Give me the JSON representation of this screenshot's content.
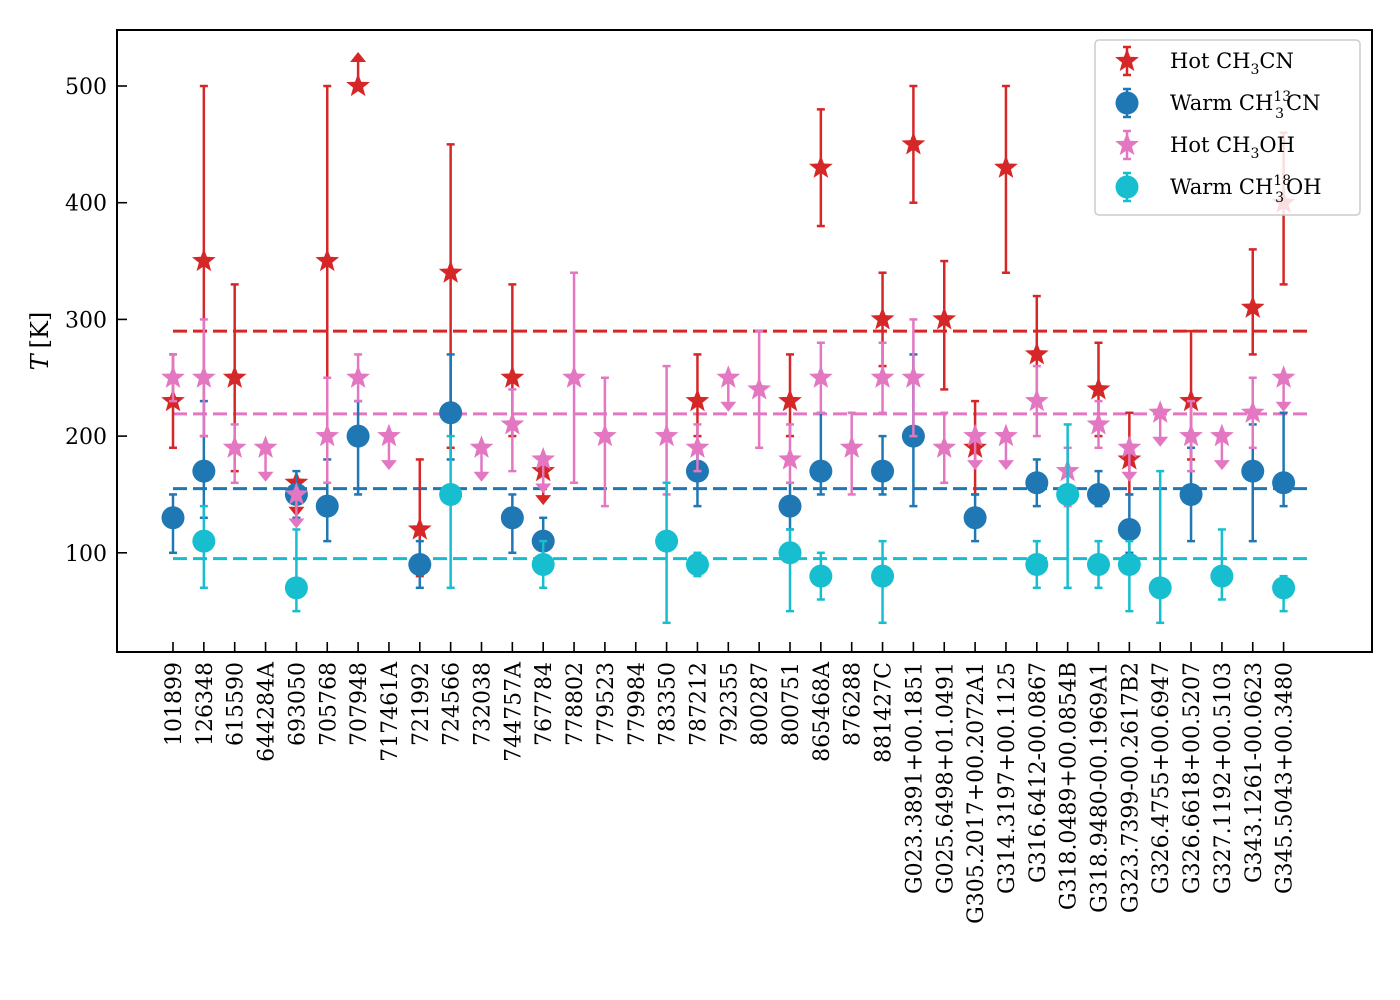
{
  "chart_data": {
    "type": "scatter",
    "ylabel_italic": "T",
    "ylabel_unit": "[K]",
    "ylim": [
      15,
      548
    ],
    "yticks": [
      100,
      200,
      300,
      400,
      500
    ],
    "categories": [
      "101899",
      "126348",
      "615590",
      "644284A",
      "693050",
      "705768",
      "707948",
      "717461A",
      "721992",
      "724566",
      "732038",
      "744757A",
      "767784",
      "778802",
      "779523",
      "779984",
      "783350",
      "787212",
      "792355",
      "800287",
      "800751",
      "865468A",
      "876288",
      "881427C",
      "G023.3891+00.1851",
      "G025.6498+01.0491",
      "G305.2017+00.2072A1",
      "G314.3197+00.1125",
      "G316.6412-00.0867",
      "G318.0489+00.0854B",
      "G318.9480-00.1969A1",
      "G323.7399-00.2617B2",
      "G326.4755+00.6947",
      "G326.6618+00.5207",
      "G327.1192+00.5103",
      "G343.1261-00.0623",
      "G345.5043+00.3480"
    ],
    "series": [
      {
        "key": "hot_ch3cn",
        "legend": {
          "pre": "Hot CH",
          "sub": "3",
          "sup": "",
          "post": "CN"
        },
        "color": "#d62728",
        "marker": "star",
        "mean": 290,
        "points": [
          {
            "i": 0,
            "y": 230,
            "lo": 190,
            "hi": 270
          },
          {
            "i": 1,
            "y": 350,
            "lo": 200,
            "hi": 500
          },
          {
            "i": 2,
            "y": 250,
            "lo": 170,
            "hi": 330
          },
          {
            "i": 4,
            "y": 160,
            "limit": "upper"
          },
          {
            "i": 5,
            "y": 350,
            "lo": 200,
            "hi": 500
          },
          {
            "i": 6,
            "y": 500,
            "limit": "lower"
          },
          {
            "i": 8,
            "y": 120,
            "lo": 80,
            "hi": 180
          },
          {
            "i": 9,
            "y": 340,
            "lo": 190,
            "hi": 450
          },
          {
            "i": 11,
            "y": 250,
            "lo": 200,
            "hi": 330
          },
          {
            "i": 12,
            "y": 170,
            "limit": "upper"
          },
          {
            "i": 17,
            "y": 230,
            "lo": 200,
            "hi": 270
          },
          {
            "i": 20,
            "y": 230,
            "lo": 200,
            "hi": 270
          },
          {
            "i": 21,
            "y": 430,
            "lo": 380,
            "hi": 480
          },
          {
            "i": 23,
            "y": 300,
            "lo": 260,
            "hi": 340
          },
          {
            "i": 24,
            "y": 450,
            "lo": 400,
            "hi": 500
          },
          {
            "i": 25,
            "y": 300,
            "lo": 240,
            "hi": 350
          },
          {
            "i": 26,
            "y": 190,
            "lo": 150,
            "hi": 230
          },
          {
            "i": 27,
            "y": 430,
            "lo": 340,
            "hi": 500
          },
          {
            "i": 28,
            "y": 270,
            "lo": 230,
            "hi": 320
          },
          {
            "i": 30,
            "y": 240,
            "lo": 200,
            "hi": 280
          },
          {
            "i": 31,
            "y": 180,
            "lo": 150,
            "hi": 220
          },
          {
            "i": 33,
            "y": 230,
            "lo": 180,
            "hi": 290
          },
          {
            "i": 35,
            "y": 310,
            "lo": 270,
            "hi": 360
          },
          {
            "i": 36,
            "y": 400,
            "lo": 330,
            "hi": 460
          }
        ]
      },
      {
        "key": "warm_13ch3cn",
        "legend": {
          "pre": "Warm CH",
          "sub": "3",
          "sup": "13",
          "post": "CN"
        },
        "color": "#1f77b4",
        "marker": "circle",
        "mean": 155,
        "points": [
          {
            "i": 0,
            "y": 130,
            "lo": 100,
            "hi": 150
          },
          {
            "i": 1,
            "y": 170,
            "lo": 130,
            "hi": 230
          },
          {
            "i": 4,
            "y": 150,
            "lo": 130,
            "hi": 170
          },
          {
            "i": 5,
            "y": 140,
            "lo": 110,
            "hi": 180
          },
          {
            "i": 6,
            "y": 200,
            "lo": 150,
            "hi": 230
          },
          {
            "i": 8,
            "y": 90,
            "lo": 70,
            "hi": 110
          },
          {
            "i": 9,
            "y": 220,
            "lo": 180,
            "hi": 270
          },
          {
            "i": 11,
            "y": 130,
            "lo": 100,
            "hi": 150
          },
          {
            "i": 12,
            "y": 110,
            "lo": 90,
            "hi": 130
          },
          {
            "i": 17,
            "y": 170,
            "lo": 140,
            "hi": 190
          },
          {
            "i": 20,
            "y": 140,
            "lo": 120,
            "hi": 160
          },
          {
            "i": 21,
            "y": 170,
            "lo": 150,
            "hi": 220
          },
          {
            "i": 23,
            "y": 170,
            "lo": 150,
            "hi": 200
          },
          {
            "i": 24,
            "y": 200,
            "lo": 140,
            "hi": 270
          },
          {
            "i": 26,
            "y": 130,
            "lo": 110,
            "hi": 150
          },
          {
            "i": 28,
            "y": 160,
            "lo": 140,
            "hi": 180
          },
          {
            "i": 30,
            "y": 150,
            "lo": 140,
            "hi": 170
          },
          {
            "i": 31,
            "y": 120,
            "lo": 100,
            "hi": 150
          },
          {
            "i": 33,
            "y": 150,
            "lo": 110,
            "hi": 190
          },
          {
            "i": 35,
            "y": 170,
            "lo": 110,
            "hi": 210
          },
          {
            "i": 36,
            "y": 160,
            "lo": 140,
            "hi": 220
          }
        ]
      },
      {
        "key": "hot_ch3oh",
        "legend": {
          "pre": "Hot CH",
          "sub": "3",
          "sup": "",
          "post": "OH"
        },
        "color": "#e377c2",
        "marker": "star",
        "mean": 219,
        "points": [
          {
            "i": 0,
            "y": 250,
            "lo": 230,
            "hi": 270
          },
          {
            "i": 1,
            "y": 250,
            "lo": 200,
            "hi": 300
          },
          {
            "i": 2,
            "y": 190,
            "lo": 160,
            "hi": 210
          },
          {
            "i": 3,
            "y": 190,
            "limit": "upper"
          },
          {
            "i": 4,
            "y": 150,
            "limit": "upper"
          },
          {
            "i": 5,
            "y": 200,
            "lo": 160,
            "hi": 250
          },
          {
            "i": 6,
            "y": 250,
            "lo": 230,
            "hi": 270
          },
          {
            "i": 7,
            "y": 200,
            "limit": "upper"
          },
          {
            "i": 10,
            "y": 190,
            "limit": "upper"
          },
          {
            "i": 11,
            "y": 210,
            "lo": 170,
            "hi": 240
          },
          {
            "i": 12,
            "y": 180,
            "limit": "upper"
          },
          {
            "i": 13,
            "y": 250,
            "lo": 160,
            "hi": 340
          },
          {
            "i": 14,
            "y": 200,
            "lo": 140,
            "hi": 250
          },
          {
            "i": 16,
            "y": 200,
            "lo": 150,
            "hi": 260
          },
          {
            "i": 17,
            "y": 190,
            "lo": 170,
            "hi": 210
          },
          {
            "i": 18,
            "y": 250,
            "limit": "upper"
          },
          {
            "i": 19,
            "y": 240,
            "lo": 190,
            "hi": 290
          },
          {
            "i": 20,
            "y": 180,
            "lo": 160,
            "hi": 210
          },
          {
            "i": 21,
            "y": 250,
            "lo": 220,
            "hi": 280
          },
          {
            "i": 22,
            "y": 190,
            "lo": 150,
            "hi": 220
          },
          {
            "i": 23,
            "y": 250,
            "lo": 220,
            "hi": 280
          },
          {
            "i": 24,
            "y": 250,
            "lo": 200,
            "hi": 300
          },
          {
            "i": 25,
            "y": 190,
            "lo": 160,
            "hi": 220
          },
          {
            "i": 26,
            "y": 200,
            "limit": "upper"
          },
          {
            "i": 27,
            "y": 200,
            "limit": "upper"
          },
          {
            "i": 28,
            "y": 230,
            "lo": 200,
            "hi": 260
          },
          {
            "i": 29,
            "y": 170,
            "lo": 140,
            "hi": 190
          },
          {
            "i": 30,
            "y": 210,
            "lo": 190,
            "hi": 230
          },
          {
            "i": 31,
            "y": 190,
            "limit": "upper"
          },
          {
            "i": 32,
            "y": 220,
            "limit": "upper"
          },
          {
            "i": 33,
            "y": 200,
            "lo": 170,
            "hi": 230
          },
          {
            "i": 34,
            "y": 200,
            "limit": "upper"
          },
          {
            "i": 35,
            "y": 220,
            "lo": 190,
            "hi": 250
          },
          {
            "i": 36,
            "y": 250,
            "limit": "upper"
          }
        ]
      },
      {
        "key": "warm_18ch3oh",
        "legend": {
          "pre": "Warm CH",
          "sub": "3",
          "sup": "18",
          "post": "OH"
        },
        "color": "#17becf",
        "marker": "circle",
        "mean": 95,
        "points": [
          {
            "i": 1,
            "y": 110,
            "lo": 70,
            "hi": 140
          },
          {
            "i": 4,
            "y": 70,
            "lo": 50,
            "hi": 120
          },
          {
            "i": 9,
            "y": 150,
            "lo": 70,
            "hi": 200
          },
          {
            "i": 12,
            "y": 90,
            "lo": 70,
            "hi": 110
          },
          {
            "i": 16,
            "y": 110,
            "lo": 40,
            "hi": 160
          },
          {
            "i": 17,
            "y": 90,
            "lo": 80,
            "hi": 100
          },
          {
            "i": 20,
            "y": 100,
            "lo": 50,
            "hi": 120
          },
          {
            "i": 21,
            "y": 80,
            "lo": 60,
            "hi": 100
          },
          {
            "i": 23,
            "y": 80,
            "lo": 40,
            "hi": 110
          },
          {
            "i": 28,
            "y": 90,
            "lo": 70,
            "hi": 110
          },
          {
            "i": 29,
            "y": 150,
            "lo": 70,
            "hi": 210
          },
          {
            "i": 30,
            "y": 90,
            "lo": 70,
            "hi": 110
          },
          {
            "i": 31,
            "y": 90,
            "lo": 50,
            "hi": 110
          },
          {
            "i": 32,
            "y": 70,
            "lo": 40,
            "hi": 170
          },
          {
            "i": 34,
            "y": 80,
            "lo": 60,
            "hi": 120
          },
          {
            "i": 36,
            "y": 70,
            "lo": 50,
            "hi": 80
          }
        ]
      }
    ]
  }
}
